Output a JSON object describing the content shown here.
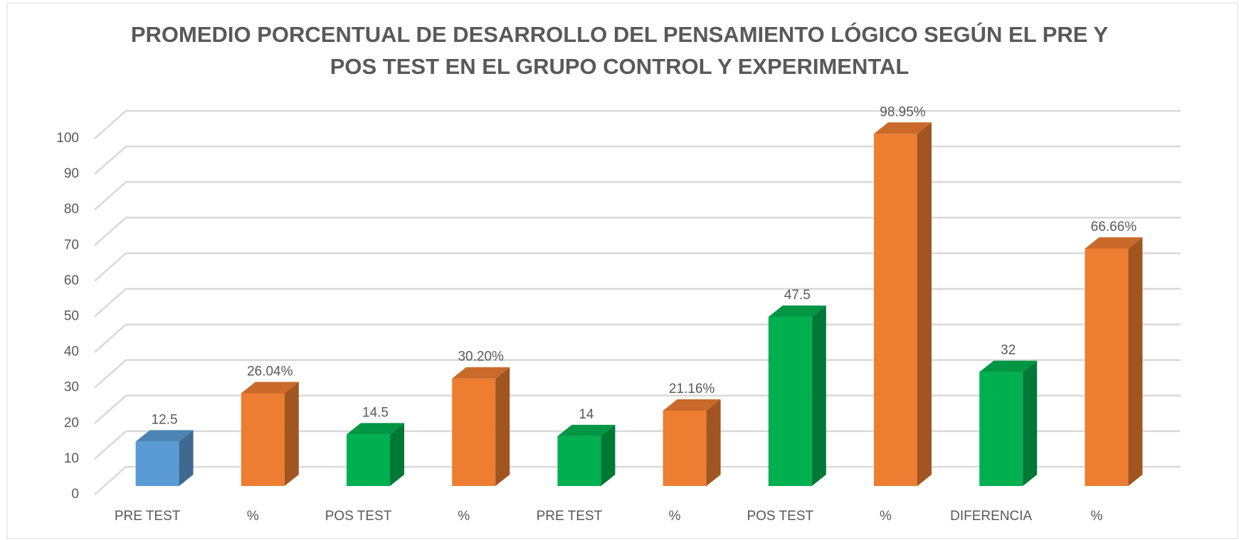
{
  "chart_data": {
    "type": "bar3d",
    "title": "PROMEDIO PORCENTUAL DE DESARROLLO DEL PENSAMIENTO LÓGICO SEGÚN EL PRE Y POS TEST EN EL GRUPO CONTROL Y EXPERIMENTAL",
    "categories": [
      "PRE TEST",
      "%",
      "POS TEST",
      "%",
      "PRE TEST",
      "%",
      "POS TEST",
      "%",
      "DIFERENCIA",
      "%"
    ],
    "values": [
      12.5,
      26.04,
      14.5,
      30.2,
      14,
      21.16,
      47.5,
      98.95,
      32,
      66.66
    ],
    "value_labels": [
      "12.5",
      "26.04%",
      "14.5",
      "30.20%",
      "14",
      "21.16%",
      "47.5",
      "98.95%",
      "32",
      "66.66%"
    ],
    "colors": [
      "#5b9bd5",
      "#ed7d31",
      "#00b050",
      "#ed7d31",
      "#00b050",
      "#ed7d31",
      "#00b050",
      "#ed7d31",
      "#00b050",
      "#ed7d31"
    ],
    "ylim": [
      0,
      100
    ],
    "yticks": [
      0,
      10,
      20,
      30,
      40,
      50,
      60,
      70,
      80,
      90,
      100
    ],
    "grid": true
  }
}
